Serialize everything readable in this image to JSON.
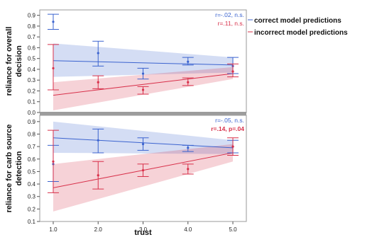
{
  "legend": {
    "items": [
      {
        "label": "correct model predictions",
        "color": "#3b63cf"
      },
      {
        "label": "incorrect model predictions",
        "color": "#d8304a"
      }
    ]
  },
  "chart_data": {
    "type": "line",
    "xlabel": "trust",
    "x_ticks": [
      "1.0",
      "2.0",
      "3.0",
      "4.0",
      "5.0"
    ],
    "xlim": [
      0.7,
      5.3
    ],
    "grid": false,
    "legend_position": "right",
    "panels": [
      {
        "ylabel_lines": [
          "reliance for overall",
          "decision"
        ],
        "ylim": [
          0.0,
          0.95
        ],
        "y_ticks": [
          "0.0",
          "0.1",
          "0.2",
          "0.3",
          "0.4",
          "0.5",
          "0.6",
          "0.7",
          "0.8",
          "0.9"
        ],
        "series": [
          {
            "name": "correct model predictions",
            "color": "#3b63cf",
            "annotation": "r=-.02,  n.s.",
            "annotation_bold": false,
            "fit": {
              "y_at_x1": 0.48,
              "y_at_x5": 0.44
            },
            "band": {
              "lower_at_x1": 0.33,
              "upper_at_x1": 0.64,
              "lower_at_x5": 0.37,
              "upper_at_x5": 0.51
            },
            "points": [
              {
                "x": 1,
                "mean": 0.84,
                "low": 0.77,
                "high": 0.91
              },
              {
                "x": 2,
                "mean": 0.55,
                "low": 0.43,
                "high": 0.66
              },
              {
                "x": 3,
                "mean": 0.36,
                "low": 0.31,
                "high": 0.41
              },
              {
                "x": 4,
                "mean": 0.47,
                "low": 0.44,
                "high": 0.51
              },
              {
                "x": 5,
                "mean": 0.43,
                "low": 0.36,
                "high": 0.51
              }
            ]
          },
          {
            "name": "incorrect model predictions",
            "color": "#d8304a",
            "annotation": "r=.11,  n.s.",
            "annotation_bold": false,
            "fit": {
              "y_at_x1": 0.16,
              "y_at_x5": 0.36
            },
            "band": {
              "lower_at_x1": 0.02,
              "upper_at_x1": 0.28,
              "lower_at_x5": 0.31,
              "upper_at_x5": 0.42
            },
            "points": [
              {
                "x": 1,
                "mean": 0.41,
                "low": 0.21,
                "high": 0.63
              },
              {
                "x": 2,
                "mean": 0.28,
                "low": 0.22,
                "high": 0.34
              },
              {
                "x": 3,
                "mean": 0.21,
                "low": 0.17,
                "high": 0.24
              },
              {
                "x": 4,
                "mean": 0.28,
                "low": 0.25,
                "high": 0.32
              },
              {
                "x": 5,
                "mean": 0.38,
                "low": 0.33,
                "high": 0.45
              }
            ]
          }
        ]
      },
      {
        "ylabel_lines": [
          "reliance for carb source",
          "detection"
        ],
        "ylim": [
          0.1,
          0.95
        ],
        "y_ticks": [
          "0.1",
          "0.2",
          "0.3",
          "0.4",
          "0.5",
          "0.6",
          "0.7",
          "0.8",
          "0.9"
        ],
        "series": [
          {
            "name": "correct model predictions",
            "color": "#3b63cf",
            "annotation": "r=-.05,  n.s.",
            "annotation_bold": false,
            "fit": {
              "y_at_x1": 0.77,
              "y_at_x5": 0.69
            },
            "band": {
              "lower_at_x1": 0.65,
              "upper_at_x1": 0.9,
              "lower_at_x5": 0.64,
              "upper_at_x5": 0.75
            },
            "points": [
              {
                "x": 1,
                "mean": 0.56,
                "low": 0.42,
                "high": 0.71
              },
              {
                "x": 2,
                "mean": 0.75,
                "low": 0.65,
                "high": 0.84
              },
              {
                "x": 3,
                "mean": 0.72,
                "low": 0.67,
                "high": 0.77
              },
              {
                "x": 4,
                "mean": 0.69,
                "low": 0.66,
                "high": 0.71
              },
              {
                "x": 5,
                "mean": 0.7,
                "low": 0.65,
                "high": 0.75
              }
            ]
          },
          {
            "name": "incorrect model predictions",
            "color": "#d8304a",
            "annotation": "r=.14,  p=.04",
            "annotation_bold": true,
            "fit": {
              "y_at_x1": 0.37,
              "y_at_x5": 0.65
            },
            "band": {
              "lower_at_x1": 0.18,
              "upper_at_x1": 0.56,
              "lower_at_x5": 0.58,
              "upper_at_x5": 0.72
            },
            "points": [
              {
                "x": 1,
                "mean": 0.58,
                "low": 0.33,
                "high": 0.83
              },
              {
                "x": 2,
                "mean": 0.47,
                "low": 0.36,
                "high": 0.58
              },
              {
                "x": 3,
                "mean": 0.51,
                "low": 0.46,
                "high": 0.56
              },
              {
                "x": 4,
                "mean": 0.52,
                "low": 0.48,
                "high": 0.56
              },
              {
                "x": 5,
                "mean": 0.7,
                "low": 0.63,
                "high": 0.77
              }
            ]
          }
        ]
      }
    ]
  }
}
